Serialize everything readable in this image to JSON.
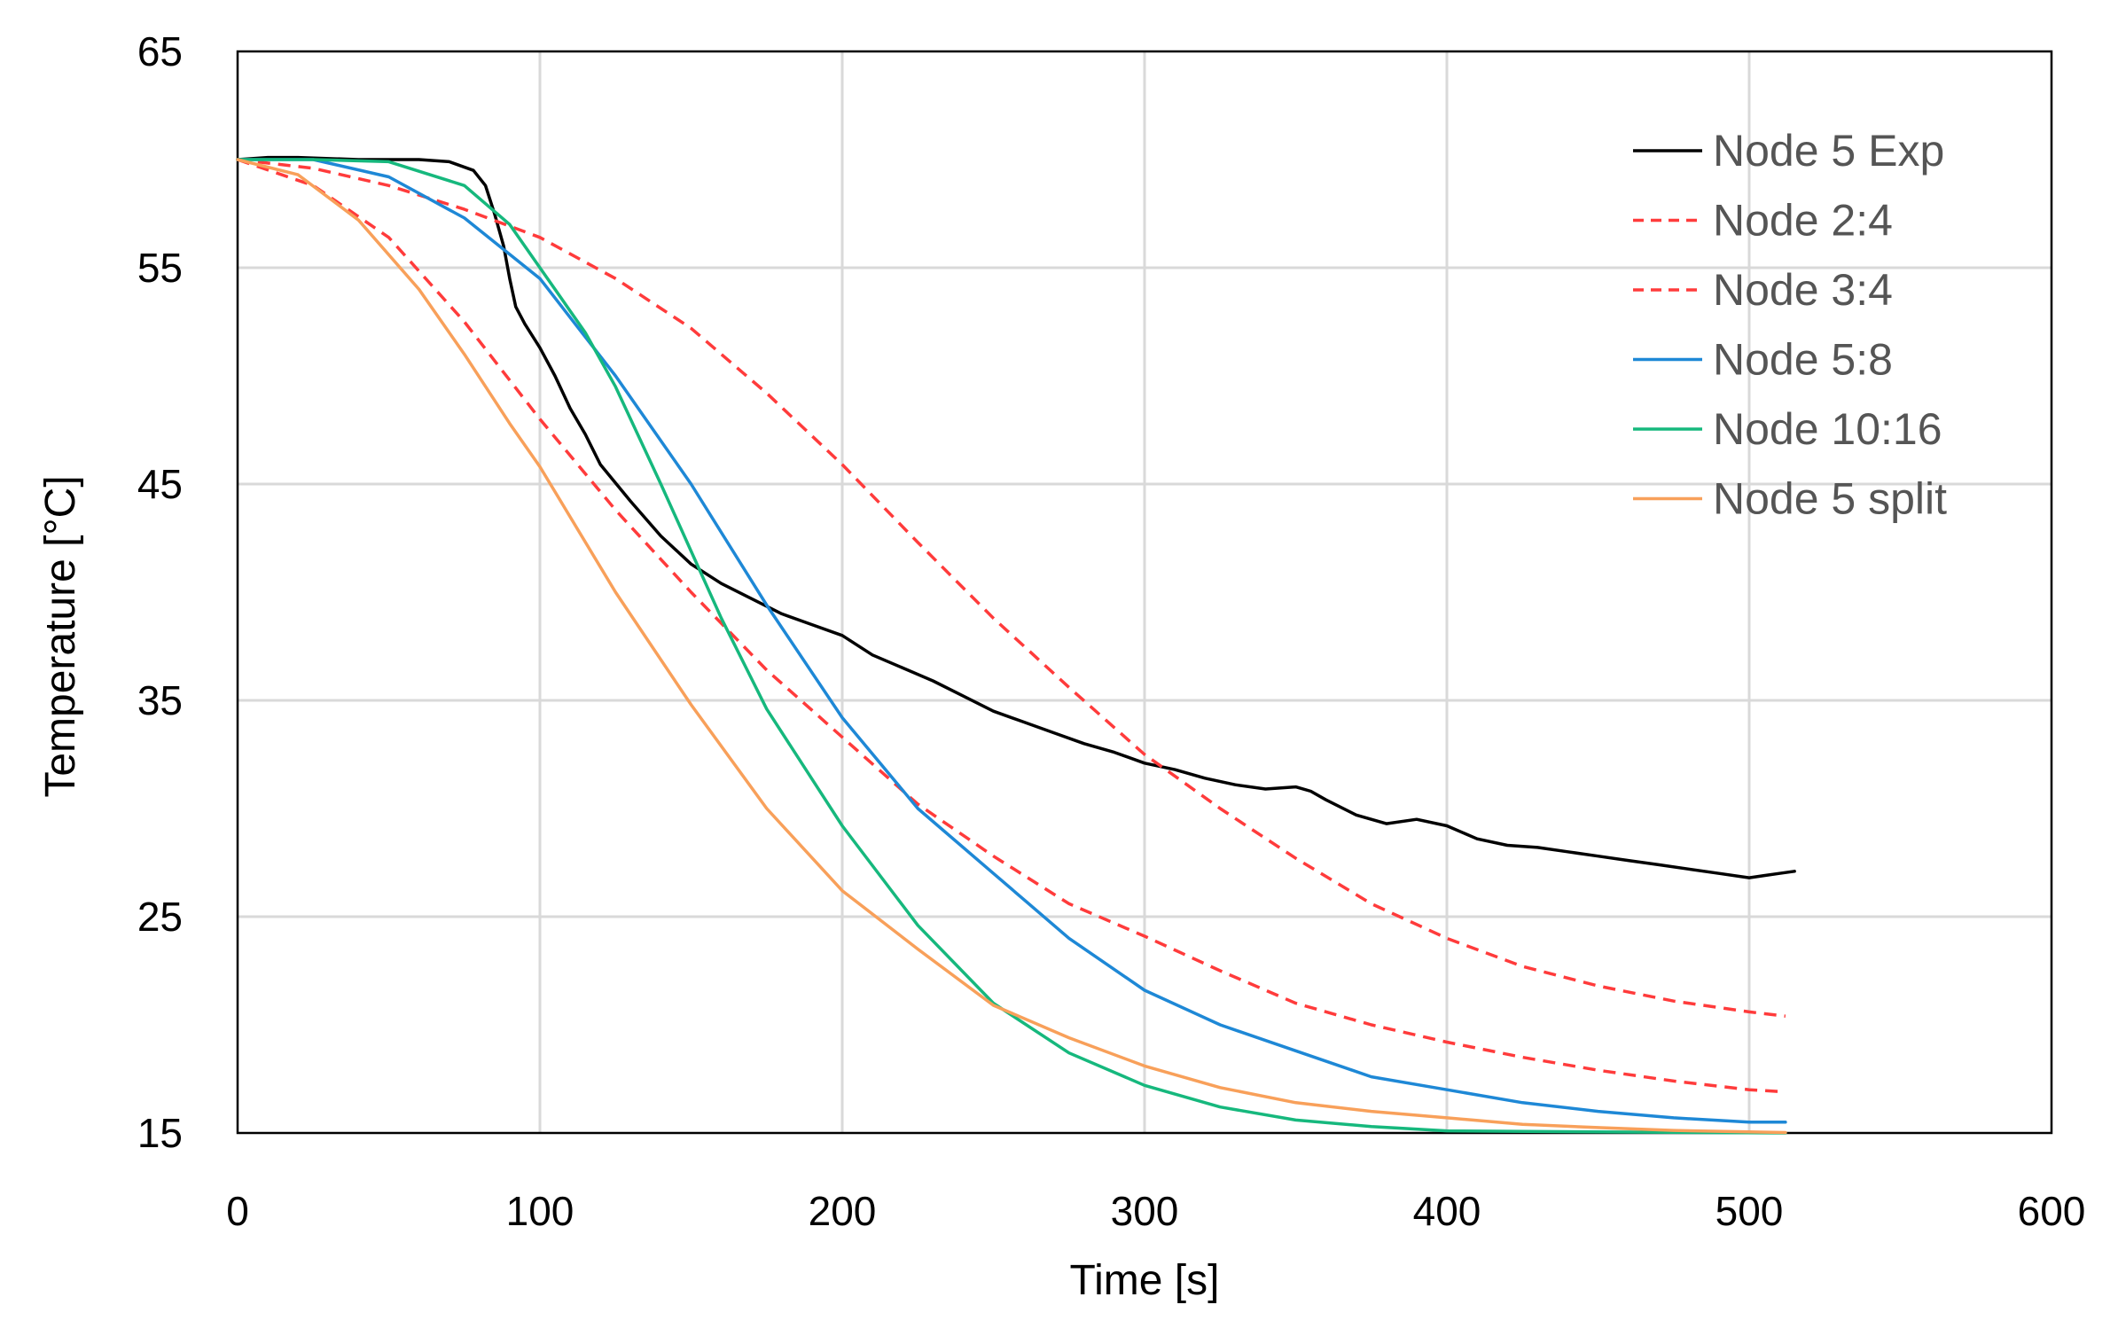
{
  "chart_data": {
    "type": "line",
    "title": "",
    "xlabel": "Time [s]",
    "ylabel": "Temperature [°C]",
    "xlim": [
      0,
      600
    ],
    "ylim": [
      15,
      65
    ],
    "xticks": [
      0,
      100,
      200,
      300,
      400,
      500,
      600
    ],
    "yticks": [
      15,
      25,
      35,
      45,
      55,
      65
    ],
    "grid": true,
    "legend_position": "top-right",
    "series": [
      {
        "name": "Node 5 Exp",
        "color": "#000000",
        "dash": "solid",
        "x": [
          0,
          10,
          20,
          40,
          60,
          70,
          78,
          82,
          85,
          88,
          90,
          92,
          95,
          100,
          105,
          110,
          115,
          120,
          130,
          140,
          150,
          160,
          170,
          180,
          190,
          200,
          210,
          220,
          230,
          240,
          250,
          260,
          270,
          280,
          290,
          300,
          310,
          320,
          330,
          340,
          350,
          355,
          360,
          370,
          380,
          390,
          400,
          410,
          420,
          430,
          440,
          450,
          460,
          470,
          480,
          490,
          500,
          505,
          510,
          515
        ],
        "y": [
          60.0,
          60.1,
          60.1,
          60.0,
          60.0,
          59.9,
          59.5,
          58.8,
          57.5,
          56.0,
          54.5,
          53.2,
          52.4,
          51.3,
          50.0,
          48.5,
          47.3,
          45.9,
          44.2,
          42.6,
          41.3,
          40.4,
          39.7,
          39.0,
          38.5,
          38.0,
          37.1,
          36.5,
          35.9,
          35.2,
          34.5,
          34.0,
          33.5,
          33.0,
          32.6,
          32.1,
          31.8,
          31.4,
          31.1,
          30.9,
          31.0,
          30.8,
          30.4,
          29.7,
          29.3,
          29.5,
          29.2,
          28.6,
          28.3,
          28.2,
          28.0,
          27.8,
          27.6,
          27.4,
          27.2,
          27.0,
          26.8,
          26.9,
          27.0,
          27.1
        ]
      },
      {
        "name": "Node 2:4",
        "color": "#ff3b3b",
        "dash": "dashed",
        "x": [
          0,
          25,
          50,
          75,
          100,
          125,
          150,
          175,
          200,
          225,
          250,
          275,
          300,
          325,
          350,
          375,
          400,
          425,
          450,
          475,
          500,
          512
        ],
        "y": [
          60.0,
          59.6,
          58.8,
          57.7,
          56.4,
          54.5,
          52.2,
          49.2,
          45.9,
          42.3,
          38.8,
          35.6,
          32.5,
          30.0,
          27.7,
          25.6,
          24.0,
          22.7,
          21.8,
          21.1,
          20.6,
          20.4
        ]
      },
      {
        "name": "Node 3:4",
        "color": "#ff3b3b",
        "dash": "dashed",
        "x": [
          0,
          25,
          50,
          75,
          100,
          125,
          150,
          175,
          200,
          225,
          250,
          275,
          300,
          325,
          350,
          375,
          400,
          425,
          450,
          475,
          500,
          512
        ],
        "y": [
          60.0,
          58.8,
          56.4,
          52.5,
          48.0,
          43.8,
          40.0,
          36.4,
          33.3,
          30.2,
          27.8,
          25.6,
          24.1,
          22.5,
          21.0,
          20.0,
          19.2,
          18.5,
          17.9,
          17.4,
          17.0,
          16.9
        ]
      },
      {
        "name": "Node 5:8",
        "color": "#1e88d6",
        "dash": "solid",
        "x": [
          0,
          25,
          50,
          75,
          100,
          125,
          150,
          175,
          200,
          225,
          250,
          275,
          300,
          325,
          350,
          375,
          400,
          425,
          450,
          475,
          500,
          512
        ],
        "y": [
          60.0,
          60.0,
          59.2,
          57.3,
          54.5,
          50.0,
          45.0,
          39.4,
          34.2,
          30.0,
          27.0,
          24.0,
          21.6,
          20.0,
          18.8,
          17.6,
          17.0,
          16.4,
          16.0,
          15.7,
          15.5,
          15.5
        ]
      },
      {
        "name": "Node 10:16",
        "color": "#16b87d",
        "dash": "solid",
        "x": [
          0,
          25,
          50,
          75,
          90,
          100,
          115,
          125,
          140,
          150,
          160,
          175,
          200,
          225,
          250,
          275,
          300,
          325,
          350,
          375,
          400,
          450,
          512
        ],
        "y": [
          60.0,
          60.0,
          59.9,
          58.8,
          57.0,
          55.0,
          52.0,
          49.5,
          45.0,
          41.9,
          38.8,
          34.6,
          29.2,
          24.6,
          21.0,
          18.7,
          17.2,
          16.2,
          15.6,
          15.3,
          15.1,
          15.05,
          15.0
        ]
      },
      {
        "name": "Node 5 split",
        "color": "#f8a05a",
        "dash": "solid",
        "x": [
          0,
          20,
          40,
          60,
          75,
          90,
          100,
          125,
          150,
          175,
          200,
          225,
          250,
          275,
          300,
          325,
          350,
          375,
          400,
          425,
          450,
          475,
          500,
          512
        ],
        "y": [
          60.0,
          59.3,
          57.2,
          54.0,
          51.0,
          47.8,
          45.8,
          40.0,
          34.8,
          30.0,
          26.2,
          23.5,
          20.9,
          19.4,
          18.1,
          17.1,
          16.4,
          16.0,
          15.7,
          15.4,
          15.25,
          15.12,
          15.05,
          15.02
        ]
      }
    ]
  }
}
